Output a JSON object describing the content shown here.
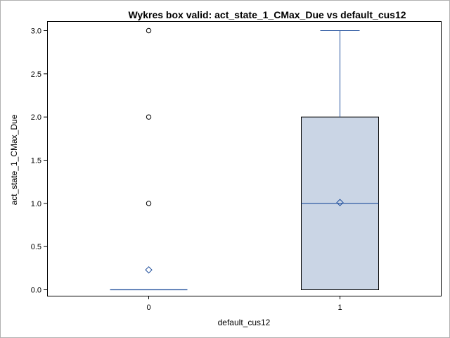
{
  "chart_data": {
    "type": "box",
    "title": "Wykres box valid: act_state_1_CMax_Due vs default_cus12",
    "xlabel": "default_cus12",
    "ylabel": "act_state_1_CMax_Due",
    "categories": [
      "0",
      "1"
    ],
    "ylim": [
      0,
      3
    ],
    "yticks": [
      "0.0",
      "0.5",
      "1.0",
      "1.5",
      "2.0",
      "2.5",
      "3.0"
    ],
    "boxes": [
      {
        "category": "0",
        "min": 0,
        "q1": 0,
        "median": 0,
        "q3": 0,
        "max": 0,
        "mean": 0.23,
        "outliers": [
          1,
          2,
          3
        ]
      },
      {
        "category": "1",
        "min": 0,
        "q1": 0,
        "median": 1,
        "q3": 2,
        "max": 3,
        "mean": 1.01,
        "outliers": []
      }
    ],
    "colors": {
      "box_fill": "#cad5e5",
      "box_stroke": "#000000",
      "median": "#1f4e9c",
      "whisker": "#1f4e9c",
      "outlier": "#000000",
      "mean": "#1f4e9c"
    }
  }
}
